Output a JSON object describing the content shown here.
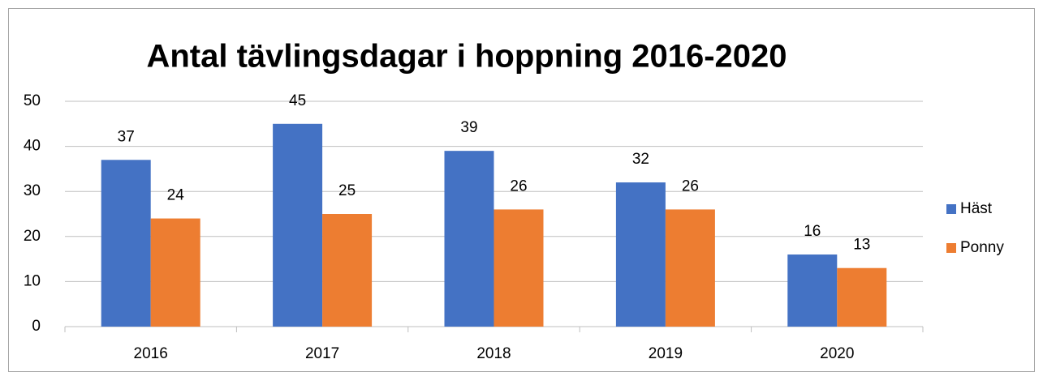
{
  "chart_data": {
    "type": "bar",
    "title": "Antal tävlingsdagar i hoppning 2016-2020",
    "categories": [
      "2016",
      "2017",
      "2018",
      "2019",
      "2020"
    ],
    "series": [
      {
        "name": "Häst",
        "color": "#4472c4",
        "values": [
          37,
          45,
          39,
          32,
          16
        ]
      },
      {
        "name": "Ponny",
        "color": "#ed7d31",
        "values": [
          24,
          25,
          26,
          26,
          13
        ]
      }
    ],
    "ylim": [
      0,
      50
    ],
    "yticks": [
      0,
      10,
      20,
      30,
      40,
      50
    ],
    "grid": true,
    "legend": "right"
  }
}
